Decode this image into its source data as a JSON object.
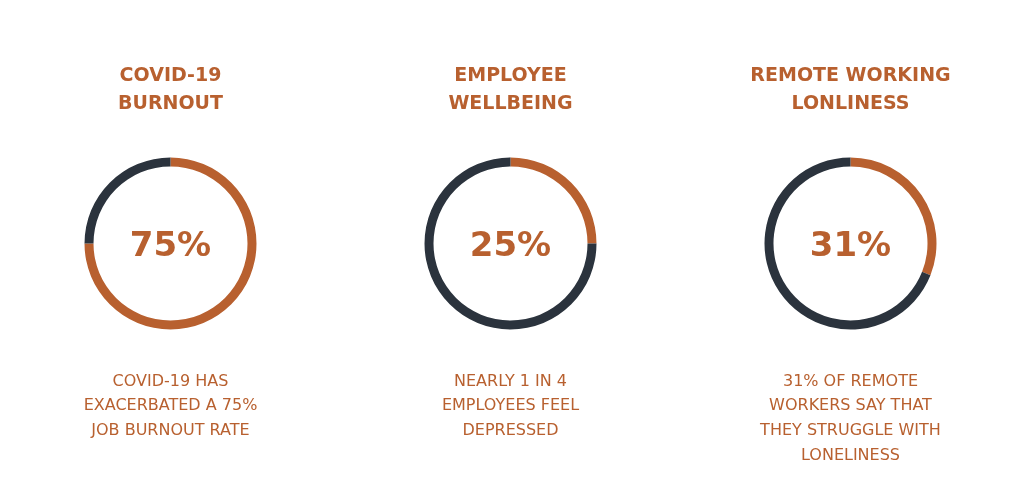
{
  "chart_data": [
    {
      "type": "donut",
      "title": "COVID-19\nBURNOUT",
      "categories": [
        null,
        null
      ],
      "values": [
        75,
        25
      ],
      "colors": [
        "#b8602f",
        "#2b333d"
      ],
      "annotations": [
        "75%",
        "COVID-19 HAS\nEXACERBATED A 75%\nJOB BURNOUT RATE"
      ]
    },
    {
      "type": "donut",
      "title": "EMPLOYEE\nWELLBEING",
      "categories": [
        null,
        null
      ],
      "values": [
        25,
        75
      ],
      "colors": [
        "#b8602f",
        "#2b333d"
      ],
      "annotations": [
        "25%",
        "NEARLY 1 IN 4\nEMPLOYEES FEEL\nDEPRESSED"
      ]
    },
    {
      "type": "donut",
      "title": "REMOTE WORKING\nLONLINESS",
      "categories": [
        null,
        null
      ],
      "values": [
        31,
        69
      ],
      "colors": [
        "#b8602f",
        "#2b333d"
      ],
      "annotations": [
        "31%",
        "31% OF REMOTE\nWORKERS SAY THAT\nTHEY STRUGGLE WITH\nLONELINESS"
      ]
    }
  ]
}
